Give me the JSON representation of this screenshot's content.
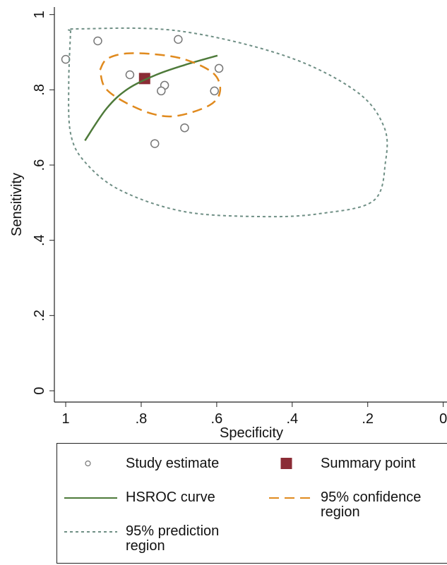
{
  "chart_data": {
    "type": "scatter",
    "x_label": "Specificity",
    "y_label": "Sensitivity",
    "xlim": [
      1.03,
      -0.01
    ],
    "ylim": [
      -0.03,
      1.02
    ],
    "xticks": [
      1,
      {
        "value": 0.8,
        "label": ".8"
      },
      {
        "value": 0.6,
        "label": ".6"
      },
      {
        "value": 0.4,
        "label": ".4"
      },
      {
        "value": 0.2,
        "label": ".2"
      },
      0
    ],
    "yticks": [
      0,
      {
        "value": 0.2,
        "label": ".2"
      },
      {
        "value": 0.4,
        "label": ".4"
      },
      {
        "value": 0.6,
        "label": ".6"
      },
      {
        "value": 0.8,
        "label": ".8"
      },
      1
    ],
    "series": [
      {
        "name": "Study estimate",
        "style": "hollow-circle",
        "color": "#777777",
        "x": [
          1.0,
          0.915,
          0.702,
          0.83,
          0.594,
          0.738,
          0.747,
          0.606,
          0.685,
          0.764
        ],
        "y": [
          0.881,
          0.93,
          0.934,
          0.84,
          0.857,
          0.812,
          0.797,
          0.797,
          0.699,
          0.657
        ]
      },
      {
        "name": "Summary point",
        "style": "square",
        "color": "#8b2c35",
        "x": [
          0.791
        ],
        "y": [
          0.83
        ]
      },
      {
        "name": "HSROC curve",
        "style": "solid",
        "color": "#4e7a3a",
        "x": [
          0.949,
          0.892,
          0.836,
          0.76,
          0.685,
          0.598
        ],
        "y": [
          0.665,
          0.75,
          0.802,
          0.84,
          0.866,
          0.891
        ]
      },
      {
        "name": "95% confidence region",
        "style": "dashed",
        "color": "#e08a1e",
        "x": [
          0.909,
          0.892,
          0.845,
          0.77,
          0.685,
          0.609,
          0.591,
          0.619,
          0.704,
          0.77,
          0.845,
          0.896,
          0.909
        ],
        "y": [
          0.853,
          0.881,
          0.896,
          0.895,
          0.881,
          0.844,
          0.797,
          0.759,
          0.731,
          0.736,
          0.768,
          0.806,
          0.853
        ]
      },
      {
        "name": "95% prediction region",
        "style": "dotted",
        "color": "#6f8f85",
        "x": [
          0.987,
          0.968,
          0.704,
          0.421,
          0.232,
          0.157,
          0.153,
          0.185,
          0.326,
          0.477,
          0.685,
          0.855,
          0.949,
          0.987,
          0.992,
          0.987
        ],
        "y": [
          0.957,
          0.962,
          0.957,
          0.891,
          0.797,
          0.702,
          0.608,
          0.505,
          0.471,
          0.463,
          0.476,
          0.533,
          0.608,
          0.684,
          0.815,
          0.957
        ]
      }
    ]
  }
}
